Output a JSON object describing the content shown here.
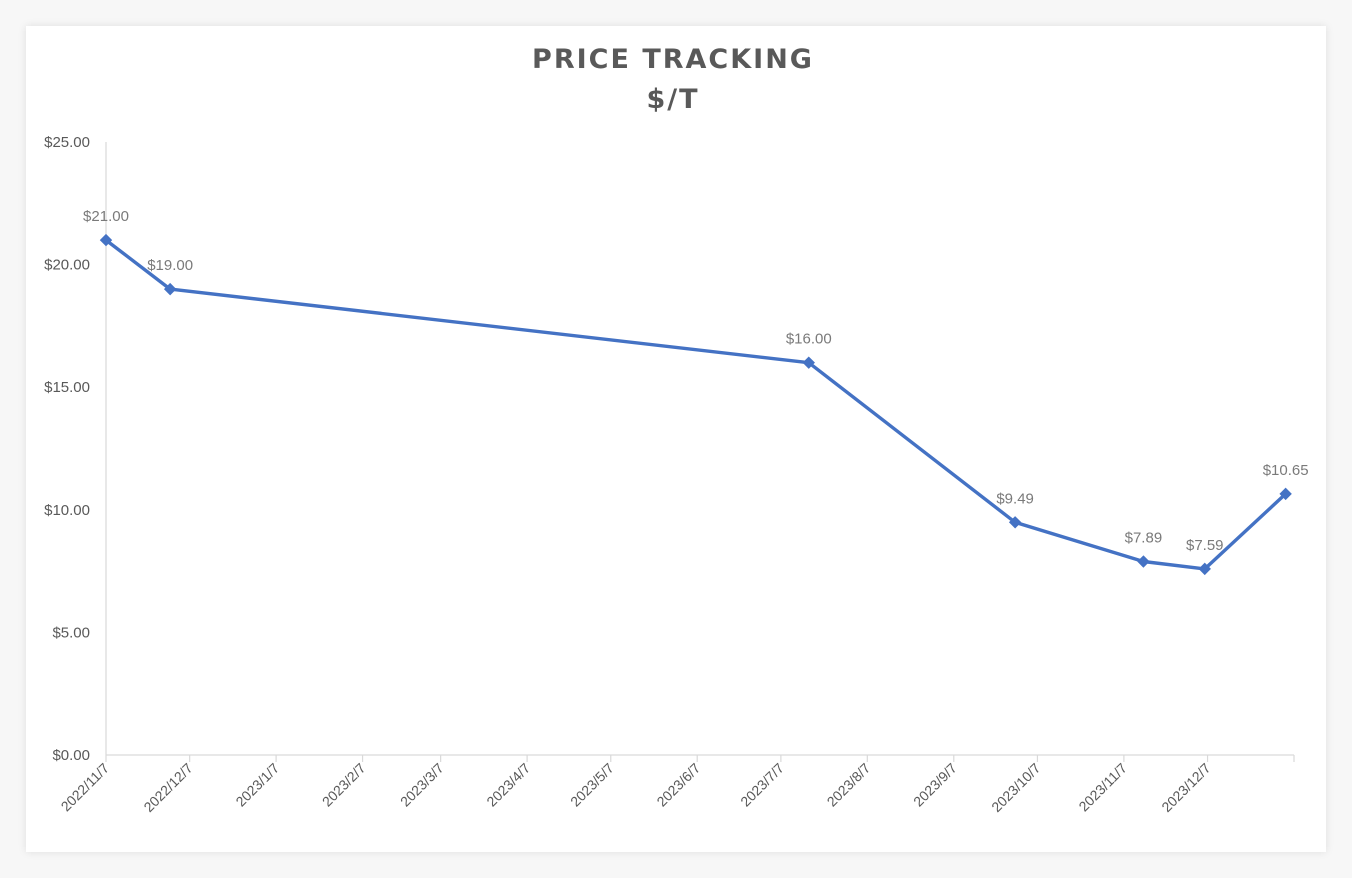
{
  "chart_data": {
    "type": "line",
    "title": "PRICE TRACKING",
    "subtitle": "$/T",
    "xlabel": "",
    "ylabel": "",
    "x_axis_type": "date",
    "x_ticks": [
      "2022/11/7",
      "2022/12/7",
      "2023/1/7",
      "2023/2/7",
      "2023/3/7",
      "2023/4/7",
      "2023/5/7",
      "2023/6/7",
      "2023/7/7",
      "2023/8/7",
      "2023/9/7",
      "2023/10/7",
      "2023/11/7",
      "2023/12/7"
    ],
    "xlim": [
      "2022/11/7",
      "2024/1/7"
    ],
    "y_ticks": [
      "$0.00",
      "$5.00",
      "$10.00",
      "$15.00",
      "$20.00",
      "$25.00"
    ],
    "ylim": [
      0,
      25
    ],
    "grid": false,
    "legend": "none",
    "line_color": "#4472c4",
    "series": [
      {
        "points": [
          {
            "x": "2022/11/7",
            "y": 21.0,
            "label": "$21.00"
          },
          {
            "x": "2022/11/30",
            "y": 19.0,
            "label": "$19.00"
          },
          {
            "x": "2023/7/17",
            "y": 16.0,
            "label": "$16.00"
          },
          {
            "x": "2023/9/29",
            "y": 9.49,
            "label": "$9.49"
          },
          {
            "x": "2023/11/14",
            "y": 7.89,
            "label": "$7.89"
          },
          {
            "x": "2023/12/6",
            "y": 7.59,
            "label": "$7.59"
          },
          {
            "x": "2024/1/4",
            "y": 10.65,
            "label": "$10.65"
          }
        ]
      }
    ]
  }
}
